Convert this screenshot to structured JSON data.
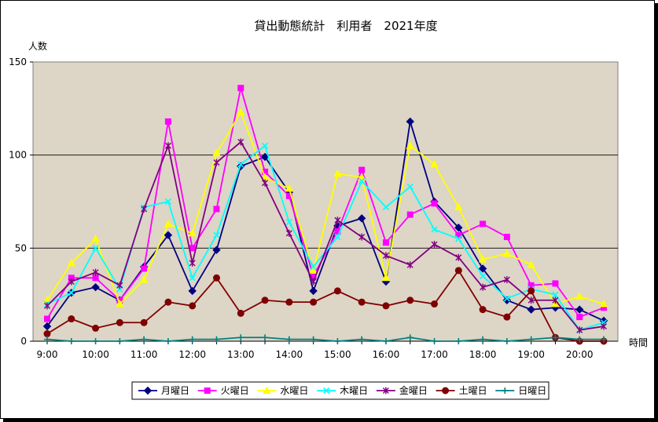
{
  "chart_data": {
    "type": "line",
    "title": "貸出動態統計　利用者　2021年度",
    "ylabel": "人数",
    "xlabel": "時間",
    "ylim": [
      0,
      150
    ],
    "yticks": [
      0,
      50,
      100,
      150
    ],
    "grid": true,
    "legend_position": "bottom",
    "background_color": "#ddd5c6",
    "x": [
      "9:00",
      "9:30",
      "10:00",
      "10:30",
      "11:00",
      "11:30",
      "12:00",
      "12:30",
      "13:00",
      "13:30",
      "14:00",
      "14:30",
      "15:00",
      "15:30",
      "16:00",
      "16:30",
      "17:00",
      "17:30",
      "18:00",
      "18:30",
      "19:00",
      "19:30",
      "20:00",
      "20:30"
    ],
    "xtick_labels": [
      "9:00",
      "10:00",
      "11:00",
      "12:00",
      "13:00",
      "14:00",
      "15:00",
      "16:00",
      "17:00",
      "18:00",
      "19:00",
      "20:00"
    ],
    "series": [
      {
        "name": "月曜日",
        "color": "#000080",
        "marker": "diamond",
        "values": [
          8,
          26,
          29,
          22,
          40,
          57,
          27,
          49,
          94,
          99,
          80,
          27,
          62,
          66,
          32,
          118,
          75,
          61,
          39,
          22,
          17,
          18,
          17,
          11
        ]
      },
      {
        "name": "火曜日",
        "color": "#ff00ff",
        "marker": "square",
        "values": [
          12,
          34,
          34,
          22,
          39,
          118,
          50,
          71,
          136,
          91,
          78,
          35,
          59,
          92,
          53,
          68,
          74,
          57,
          63,
          56,
          30,
          31,
          13,
          18
        ]
      },
      {
        "name": "水曜日",
        "color": "#ffff00",
        "marker": "triangle",
        "values": [
          22,
          42,
          55,
          20,
          33,
          63,
          58,
          101,
          123,
          88,
          82,
          38,
          90,
          88,
          34,
          105,
          95,
          72,
          44,
          47,
          41,
          20,
          24,
          20
        ]
      },
      {
        "name": "木曜日",
        "color": "#00ffff",
        "marker": "x",
        "values": [
          20,
          26,
          50,
          28,
          72,
          75,
          34,
          57,
          95,
          105,
          64,
          40,
          56,
          86,
          72,
          83,
          60,
          55,
          35,
          23,
          28,
          25,
          6,
          10
        ]
      },
      {
        "name": "金曜日",
        "color": "#800080",
        "marker": "star",
        "values": [
          19,
          32,
          37,
          30,
          71,
          105,
          42,
          96,
          107,
          85,
          58,
          32,
          65,
          56,
          46,
          41,
          52,
          45,
          29,
          33,
          22,
          22,
          6,
          8
        ]
      },
      {
        "name": "土曜日",
        "color": "#800000",
        "marker": "circle",
        "values": [
          4,
          12,
          7,
          10,
          10,
          21,
          19,
          34,
          15,
          22,
          21,
          21,
          27,
          21,
          19,
          22,
          20,
          38,
          17,
          13,
          27,
          2,
          0,
          0
        ]
      },
      {
        "name": "日曜日",
        "color": "#008080",
        "marker": "plus",
        "values": [
          1,
          0,
          0,
          0,
          1,
          0,
          1,
          1,
          2,
          2,
          1,
          1,
          0,
          1,
          0,
          2,
          0,
          0,
          1,
          0,
          1,
          2,
          1,
          1
        ]
      }
    ]
  }
}
